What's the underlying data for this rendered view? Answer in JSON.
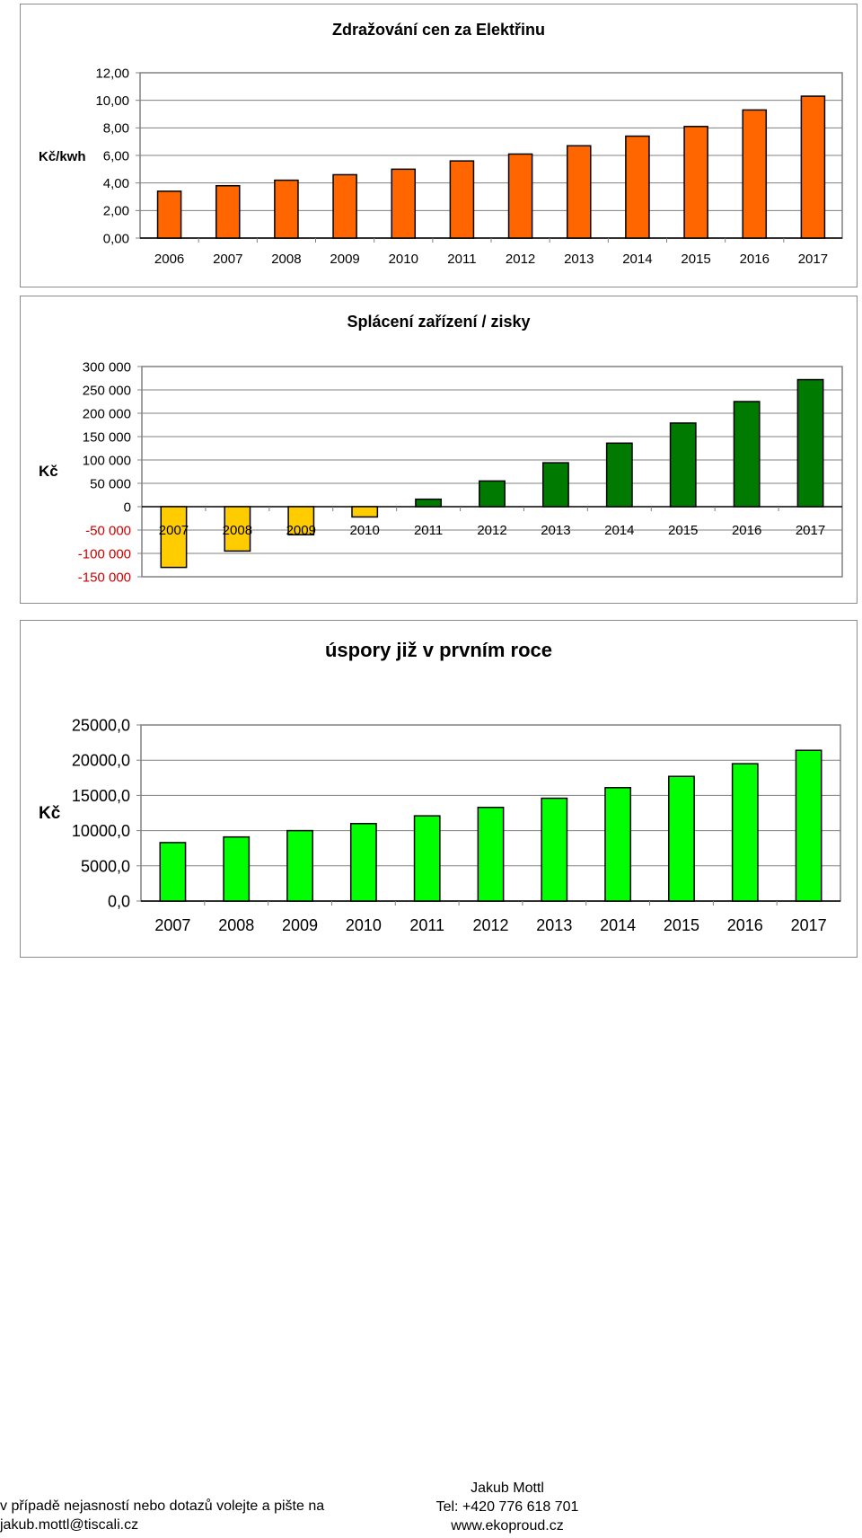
{
  "chart_data": [
    {
      "type": "bar",
      "title": "Zdražování cen za Elektřinu",
      "ylabel": "Kč/kwh",
      "xlabel": "",
      "categories": [
        "2006",
        "2007",
        "2008",
        "2009",
        "2010",
        "2011",
        "2012",
        "2013",
        "2014",
        "2015",
        "2016",
        "2017"
      ],
      "values": [
        3.4,
        3.8,
        4.2,
        4.6,
        5.0,
        5.6,
        6.1,
        6.7,
        7.4,
        8.1,
        9.3,
        10.3
      ],
      "ylim": [
        0,
        12
      ],
      "yticks": [
        0,
        2,
        4,
        6,
        8,
        10,
        12
      ],
      "ytick_labels": [
        "0,00",
        "2,00",
        "4,00",
        "6,00",
        "8,00",
        "10,00",
        "12,00"
      ],
      "bar_color": "#ff6600",
      "grid": true
    },
    {
      "type": "bar",
      "title": "Splácení zařízení / zisky",
      "ylabel": "Kč",
      "xlabel": "",
      "categories": [
        "2007",
        "2008",
        "2009",
        "2010",
        "2011",
        "2012",
        "2013",
        "2014",
        "2015",
        "2016",
        "2017"
      ],
      "values": [
        -130000,
        -95000,
        -60000,
        -22000,
        16000,
        55000,
        94000,
        136000,
        179000,
        225000,
        272000
      ],
      "ylim": [
        -150000,
        300000
      ],
      "yticks": [
        -150000,
        -100000,
        -50000,
        0,
        50000,
        100000,
        150000,
        200000,
        250000,
        300000
      ],
      "ytick_labels": [
        "-150 000",
        "-100 000",
        "-50 000",
        "0",
        "50 000",
        "100 000",
        "150 000",
        "200 000",
        "250 000",
        "300 000"
      ],
      "negative_color": "#ffcc00",
      "positive_color": "#007a00",
      "negative_tick_color": "#cc0000",
      "grid": true
    },
    {
      "type": "bar",
      "title": "úspory již v prvním roce",
      "ylabel": "Kč",
      "xlabel": "",
      "categories": [
        "2007",
        "2008",
        "2009",
        "2010",
        "2011",
        "2012",
        "2013",
        "2014",
        "2015",
        "2016",
        "2017"
      ],
      "values": [
        8300,
        9100,
        10000,
        11000,
        12100,
        13300,
        14600,
        16100,
        17700,
        19500,
        21400
      ],
      "ylim": [
        0,
        25000
      ],
      "yticks": [
        0,
        5000,
        10000,
        15000,
        20000,
        25000
      ],
      "ytick_labels": [
        "0,0",
        "5000,0",
        "10000,0",
        "15000,0",
        "20000,0",
        "25000,0"
      ],
      "bar_color": "#00ff00",
      "grid": true
    }
  ],
  "footer": {
    "left_line1": "v případě nejasností nebo dotazů volejte a pište na",
    "left_line2": "jakub.mottl@tiscali.cz",
    "right_line1": "Jakub Mottl",
    "right_line2": "Tel: +420 776 618 701",
    "right_line3": "www.ekoproud.cz"
  }
}
